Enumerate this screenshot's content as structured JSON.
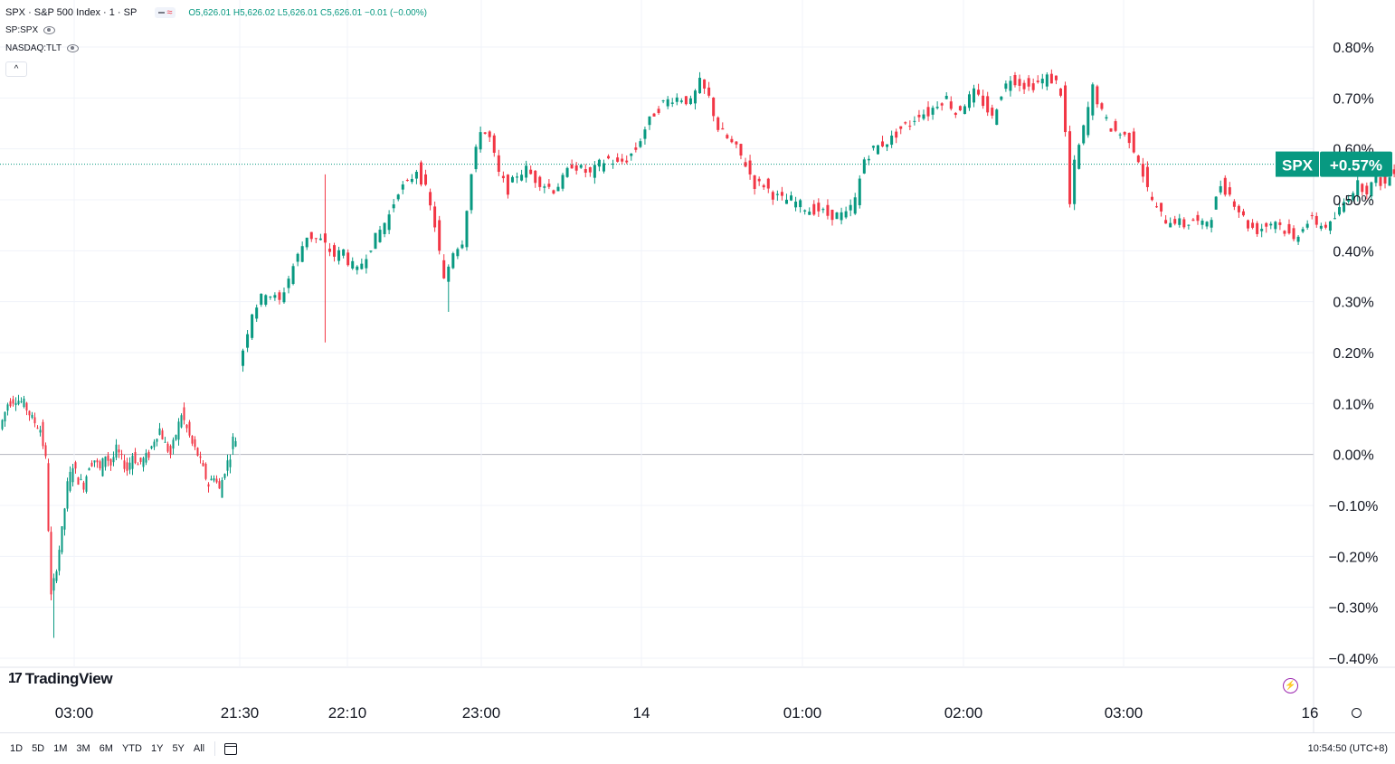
{
  "legend": {
    "title": "SPX · S&P 500 Index · 1 · SP",
    "ohlc": "O5,626.01 H5,626.02 L5,626.01 C5,626.01 −0.01 (−0.00%)",
    "compare1": "SP:SPX",
    "compare2": "NASDAQ:TLT",
    "collapse": "^"
  },
  "logo": "TradingView",
  "price_tag": {
    "symbol": "SPX",
    "value": "+0.57%"
  },
  "bottom": {
    "ranges": [
      "1D",
      "5D",
      "1M",
      "3M",
      "6M",
      "YTD",
      "1Y",
      "5Y",
      "All"
    ],
    "time": "10:54:50 (UTC+8)"
  },
  "colors": {
    "up": "#089981",
    "down": "#f23645",
    "grid": "#f0f3fa",
    "zero": "#b2b5be"
  },
  "icons": [
    "eye-icon",
    "collapse-icon",
    "lightning-icon",
    "calendar-icon",
    "settings-icon"
  ],
  "chart_data": {
    "type": "candlestick",
    "ylabel_unit": "%",
    "ylim": [
      -0.43,
      0.84
    ],
    "yticks": [
      0.8,
      0.7,
      0.6,
      0.5,
      0.4,
      0.3,
      0.2,
      0.1,
      0.0,
      -0.1,
      -0.2,
      -0.3,
      -0.4
    ],
    "ytick_labels": [
      "0.80%",
      "0.70%",
      "0.60%",
      "0.50%",
      "0.40%",
      "0.30%",
      "0.20%",
      "0.10%",
      "0.00%",
      "−0.10%",
      "−0.20%",
      "−0.30%",
      "−0.40%"
    ],
    "xtick_labels": [
      "03:00",
      "21:30",
      "22:10",
      "23:00",
      "14",
      "01:00",
      "02:00",
      "03:00",
      "16"
    ],
    "last_value": 0.57,
    "series": [
      {
        "session": "prior",
        "points": [
          [
            0,
            0.05
          ],
          [
            3,
            0.1
          ],
          [
            6,
            0.11
          ],
          [
            9,
            0.1
          ],
          [
            12,
            0.07
          ],
          [
            15,
            0.05
          ],
          [
            17,
            -0.01
          ],
          [
            19,
            -0.28
          ],
          [
            21,
            -0.22
          ],
          [
            23,
            -0.15
          ],
          [
            25,
            -0.06
          ],
          [
            27,
            -0.02
          ],
          [
            29,
            -0.05
          ],
          [
            31,
            -0.06
          ],
          [
            33,
            -0.02
          ],
          [
            35,
            -0.01
          ],
          [
            37,
            -0.03
          ],
          [
            39,
            0.0
          ],
          [
            41,
            -0.02
          ],
          [
            43,
            0.01
          ],
          [
            45,
            -0.01
          ],
          [
            47,
            -0.03
          ],
          [
            49,
            0.0
          ],
          [
            51,
            -0.02
          ],
          [
            53,
            -0.01
          ],
          [
            55,
            0.0
          ],
          [
            57,
            0.03
          ],
          [
            59,
            0.05
          ],
          [
            61,
            0.02
          ],
          [
            63,
            0.0
          ],
          [
            65,
            0.04
          ],
          [
            67,
            0.08
          ],
          [
            69,
            0.05
          ],
          [
            71,
            0.02
          ],
          [
            73,
            0.0
          ],
          [
            75,
            -0.03
          ],
          [
            77,
            -0.06
          ],
          [
            79,
            -0.04
          ],
          [
            81,
            -0.07
          ],
          [
            83,
            -0.03
          ],
          [
            85,
            0.0
          ],
          [
            86,
            0.03
          ],
          [
            87,
            0.03
          ]
        ]
      },
      {
        "session": "current",
        "points": [
          [
            0,
            0.17
          ],
          [
            3,
            0.28
          ],
          [
            6,
            0.32
          ],
          [
            9,
            0.3
          ],
          [
            12,
            0.37
          ],
          [
            15,
            0.43
          ],
          [
            18,
            0.42
          ],
          [
            21,
            0.39
          ],
          [
            23,
            0.4
          ],
          [
            24,
            0.38
          ],
          [
            26,
            0.36
          ],
          [
            29,
            0.41
          ],
          [
            31,
            0.44
          ],
          [
            33,
            0.47
          ],
          [
            35,
            0.52
          ],
          [
            37,
            0.53
          ],
          [
            39,
            0.56
          ],
          [
            41,
            0.52
          ],
          [
            43,
            0.45
          ],
          [
            45,
            0.34
          ],
          [
            47,
            0.4
          ],
          [
            49,
            0.42
          ],
          [
            51,
            0.55
          ],
          [
            53,
            0.64
          ],
          [
            55,
            0.62
          ],
          [
            57,
            0.55
          ],
          [
            59,
            0.52
          ],
          [
            61,
            0.55
          ],
          [
            63,
            0.56
          ],
          [
            65,
            0.54
          ],
          [
            67,
            0.53
          ],
          [
            69,
            0.52
          ],
          [
            71,
            0.54
          ],
          [
            73,
            0.57
          ],
          [
            75,
            0.56
          ],
          [
            77,
            0.55
          ],
          [
            79,
            0.57
          ],
          [
            81,
            0.58
          ],
          [
            83,
            0.57
          ],
          [
            85,
            0.58
          ],
          [
            87,
            0.6
          ],
          [
            89,
            0.64
          ],
          [
            91,
            0.67
          ],
          [
            93,
            0.69
          ],
          [
            95,
            0.7
          ],
          [
            97,
            0.7
          ],
          [
            99,
            0.69
          ],
          [
            101,
            0.73
          ],
          [
            103,
            0.7
          ],
          [
            105,
            0.64
          ],
          [
            107,
            0.62
          ],
          [
            109,
            0.6
          ],
          [
            111,
            0.57
          ],
          [
            113,
            0.53
          ],
          [
            115,
            0.53
          ],
          [
            117,
            0.51
          ],
          [
            119,
            0.5
          ],
          [
            121,
            0.5
          ],
          [
            123,
            0.49
          ],
          [
            125,
            0.48
          ],
          [
            127,
            0.48
          ],
          [
            129,
            0.47
          ],
          [
            131,
            0.47
          ],
          [
            133,
            0.47
          ],
          [
            135,
            0.5
          ],
          [
            137,
            0.58
          ],
          [
            139,
            0.6
          ],
          [
            141,
            0.61
          ],
          [
            143,
            0.62
          ],
          [
            145,
            0.64
          ],
          [
            147,
            0.65
          ],
          [
            149,
            0.67
          ],
          [
            151,
            0.67
          ],
          [
            153,
            0.69
          ],
          [
            155,
            0.7
          ],
          [
            157,
            0.67
          ],
          [
            159,
            0.69
          ],
          [
            161,
            0.71
          ],
          [
            163,
            0.69
          ],
          [
            165,
            0.66
          ],
          [
            167,
            0.71
          ],
          [
            169,
            0.74
          ],
          [
            171,
            0.73
          ],
          [
            173,
            0.72
          ],
          [
            175,
            0.73
          ],
          [
            177,
            0.74
          ],
          [
            179,
            0.73
          ],
          [
            180,
            0.71
          ],
          [
            181,
            0.63
          ],
          [
            182,
            0.49
          ],
          [
            183,
            0.57
          ],
          [
            185,
            0.64
          ],
          [
            187,
            0.72
          ],
          [
            189,
            0.67
          ],
          [
            191,
            0.64
          ],
          [
            193,
            0.63
          ],
          [
            195,
            0.62
          ],
          [
            197,
            0.58
          ],
          [
            199,
            0.52
          ],
          [
            201,
            0.48
          ],
          [
            203,
            0.46
          ],
          [
            205,
            0.46
          ],
          [
            207,
            0.45
          ],
          [
            209,
            0.46
          ],
          [
            211,
            0.45
          ],
          [
            213,
            0.47
          ],
          [
            215,
            0.53
          ],
          [
            217,
            0.51
          ],
          [
            219,
            0.48
          ],
          [
            221,
            0.45
          ],
          [
            223,
            0.44
          ],
          [
            225,
            0.45
          ],
          [
            227,
            0.46
          ],
          [
            229,
            0.44
          ],
          [
            231,
            0.42
          ],
          [
            233,
            0.45
          ],
          [
            235,
            0.46
          ],
          [
            237,
            0.45
          ],
          [
            239,
            0.45
          ],
          [
            241,
            0.48
          ],
          [
            243,
            0.51
          ],
          [
            245,
            0.53
          ],
          [
            247,
            0.52
          ],
          [
            249,
            0.54
          ],
          [
            251,
            0.53
          ],
          [
            253,
            0.56
          ],
          [
            255,
            0.54
          ],
          [
            257,
            0.53
          ],
          [
            259,
            0.55
          ],
          [
            261,
            0.54
          ],
          [
            263,
            0.51
          ],
          [
            265,
            0.53
          ],
          [
            267,
            0.55
          ],
          [
            269,
            0.57
          ],
          [
            271,
            0.59
          ],
          [
            273,
            0.58
          ],
          [
            275,
            0.6
          ],
          [
            277,
            0.59
          ],
          [
            278,
            0.57
          ]
        ]
      }
    ]
  }
}
